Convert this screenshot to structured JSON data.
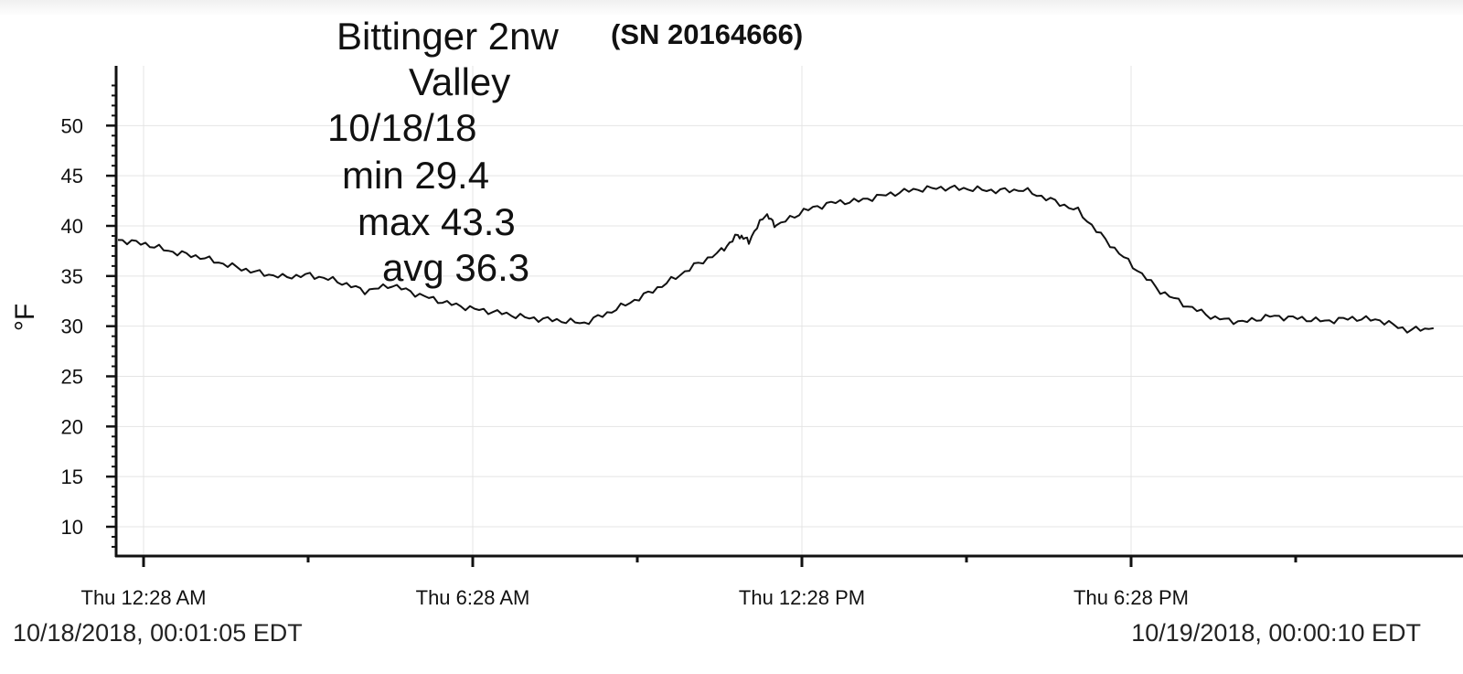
{
  "title": "Bittinger 2nw",
  "serial": "(SN 20164666)",
  "stats": [
    "Valley",
    "10/18/18",
    "min 29.4",
    "max 43.3",
    "avg 36.3"
  ],
  "footer": {
    "start": "10/18/2018, 00:01:05 EDT",
    "end": "10/19/2018, 00:00:10 EDT"
  },
  "chart_data": {
    "type": "line",
    "title": "Bittinger 2nw",
    "ylabel": "°F",
    "xlabel": "",
    "ylim": [
      7,
      57
    ],
    "yticks": [
      10,
      15,
      20,
      25,
      30,
      35,
      40,
      45,
      50
    ],
    "xticks": [
      {
        "hour": 0.467,
        "label": "Thu 12:28 AM"
      },
      {
        "hour": 6.467,
        "label": "Thu 6:28 AM"
      },
      {
        "hour": 12.467,
        "label": "Thu 12:28 PM"
      },
      {
        "hour": 18.467,
        "label": "Thu 6:28 PM"
      }
    ],
    "xlim_hours": [
      0,
      23.98
    ],
    "grid": true,
    "series": [
      {
        "x_hours": [
          0.0,
          0.5,
          1.0,
          1.5,
          2.0,
          2.5,
          3.0,
          3.5,
          4.0,
          4.5,
          5.0,
          5.5,
          6.0,
          6.5,
          7.0,
          7.5,
          8.0,
          8.5,
          9.0,
          9.5,
          10.0,
          10.5,
          11.0,
          11.3,
          11.5,
          11.8,
          12.0,
          12.5,
          13.0,
          13.5,
          14.0,
          14.5,
          15.0,
          15.5,
          16.0,
          16.5,
          17.0,
          17.5,
          18.0,
          18.5,
          19.0,
          19.5,
          20.0,
          20.5,
          21.0,
          21.5,
          22.0,
          22.5,
          23.0,
          23.5,
          23.98
        ],
        "values": [
          38.6,
          38.2,
          37.4,
          36.9,
          36.1,
          35.4,
          34.9,
          35.1,
          34.5,
          33.5,
          34.1,
          33.1,
          32.3,
          31.7,
          31.3,
          30.8,
          30.6,
          30.3,
          31.5,
          32.8,
          34.3,
          36.0,
          37.5,
          39.1,
          38.5,
          41.2,
          40.0,
          41.5,
          42.3,
          42.5,
          43.1,
          43.6,
          43.8,
          43.7,
          43.5,
          43.6,
          42.6,
          41.5,
          38.6,
          36.0,
          33.5,
          32.0,
          30.8,
          30.4,
          31.0,
          30.8,
          30.5,
          30.8,
          30.6,
          29.6,
          29.8
        ]
      }
    ]
  }
}
